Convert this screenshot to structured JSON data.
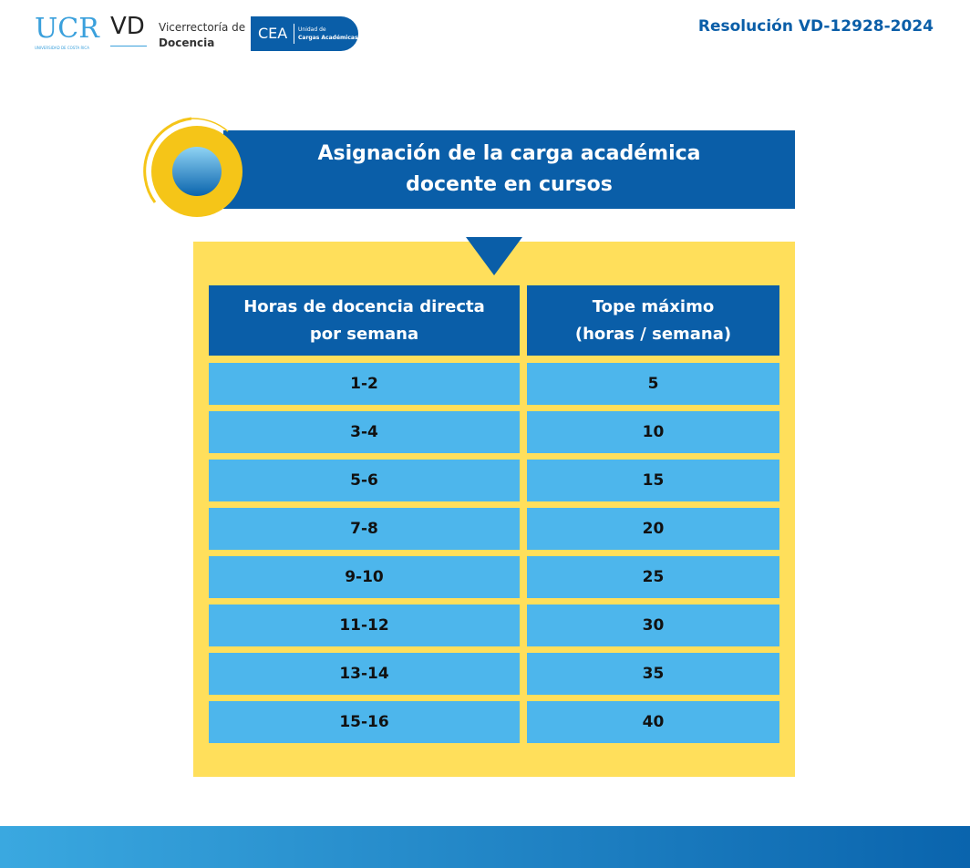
{
  "header": {
    "ucr": "UCR",
    "ucr_sub": "UNIVERSIDAD DE COSTA RICA",
    "vd": "VD",
    "vd_line1": "Vicerrectoría de",
    "vd_line2": "Docencia",
    "cea": "CEA",
    "cea_line1": "Unidad de",
    "cea_line2": "Cargas Académicas",
    "resolution": "Resolución VD-12928-2024"
  },
  "title": [
    "Asignación de la carga académica",
    "docente en cursos"
  ],
  "table": {
    "header": [
      [
        "Horas de docencia directa",
        "por semana"
      ],
      [
        "Tope máximo",
        "(horas / semana)"
      ]
    ],
    "rows": [
      [
        "1-2",
        5
      ],
      [
        "3-4",
        10
      ],
      [
        "5-6",
        15
      ],
      [
        "7-8",
        20
      ],
      [
        "9-10",
        25
      ],
      [
        "11-12",
        30
      ],
      [
        "13-14",
        35
      ],
      [
        "15-16",
        40
      ]
    ]
  }
}
